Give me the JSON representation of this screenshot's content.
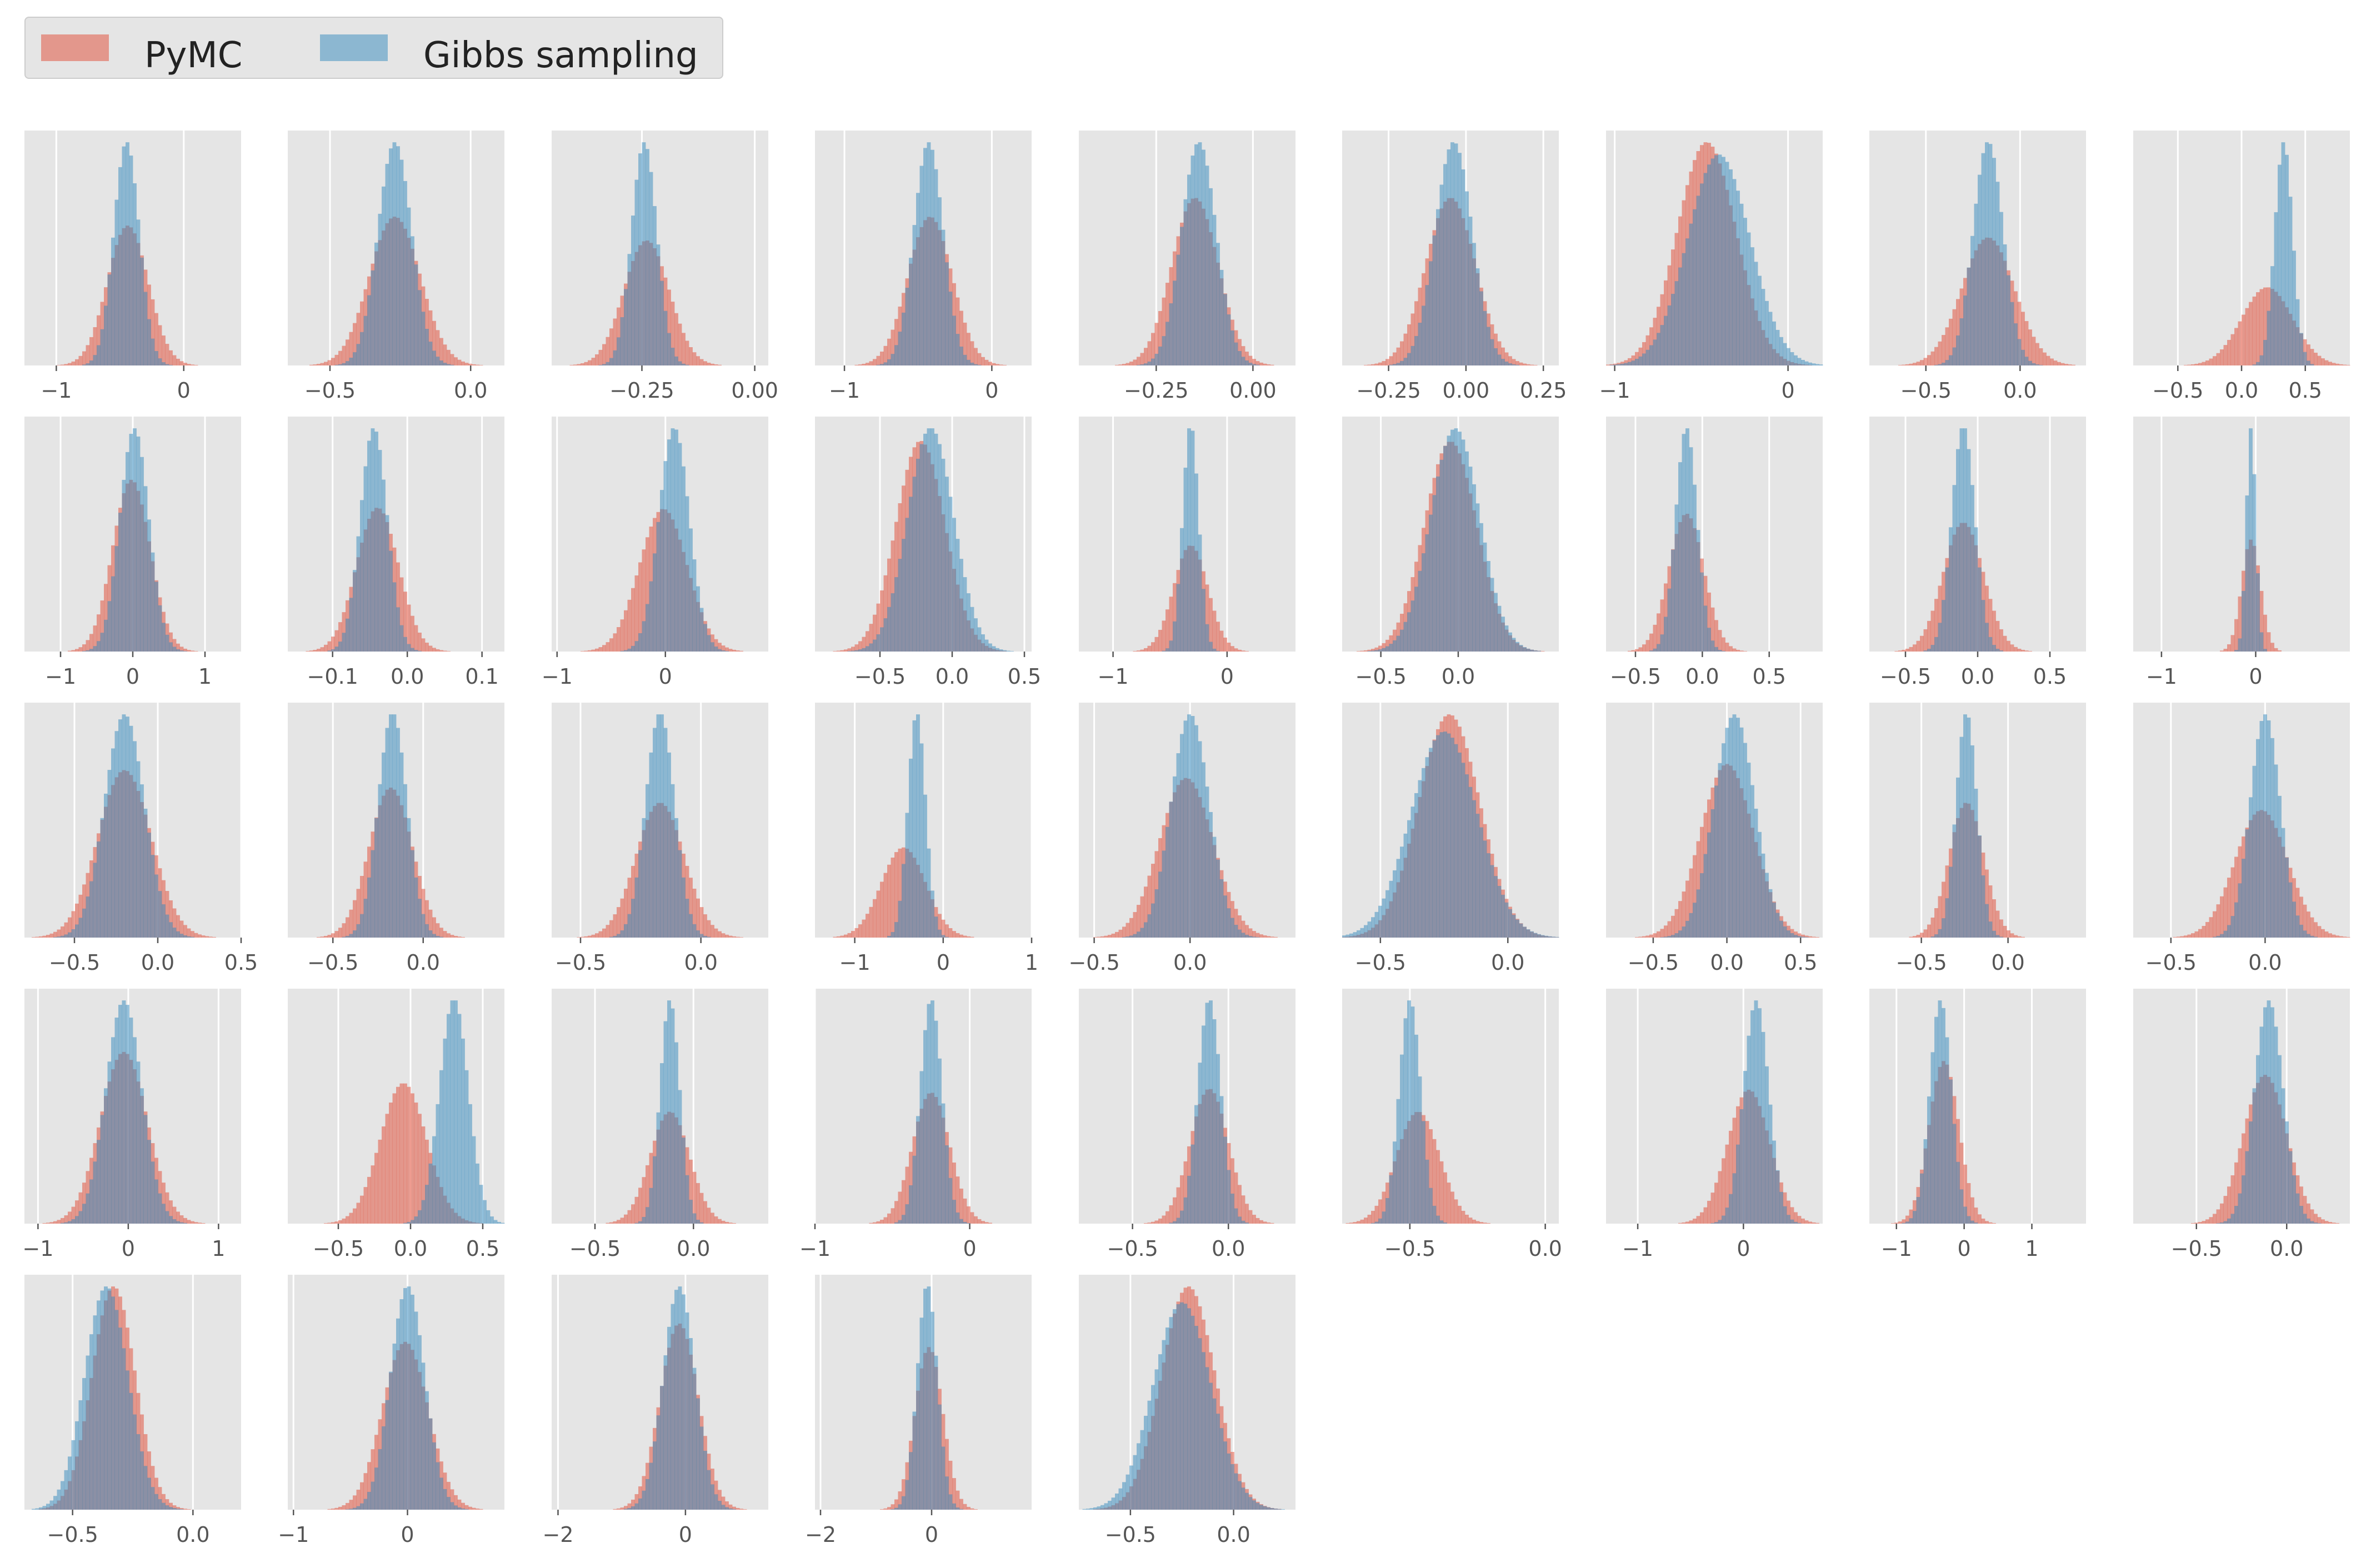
{
  "colors": {
    "panel_bg": "#e5e5e5",
    "grid": "#ffffff",
    "tick_text": "#555555",
    "pymc": "#e24a33",
    "gibbs": "#348abd",
    "hist_alpha": 0.5
  },
  "legend": {
    "items": [
      {
        "label": "PyMC",
        "color": "#e24a33"
      },
      {
        "label": "Gibbs sampling",
        "color": "#348abd"
      }
    ]
  },
  "chart_data": [
    {
      "type": "histogram",
      "xlim": [
        -1.25,
        0.45
      ],
      "ticks": [
        -1,
        0
      ],
      "tick_labels": [
        "−1",
        "0"
      ],
      "series": [
        {
          "name": "PyMC",
          "mean": -0.44,
          "sd": 0.16
        },
        {
          "name": "Gibbs sampling",
          "mean": -0.45,
          "sd": 0.1
        }
      ]
    },
    {
      "type": "histogram",
      "xlim": [
        -0.65,
        0.12
      ],
      "ticks": [
        -0.5,
        0.0
      ],
      "tick_labels": [
        "−0.5",
        "0.0"
      ],
      "series": [
        {
          "name": "PyMC",
          "mean": -0.27,
          "sd": 0.09
        },
        {
          "name": "Gibbs sampling",
          "mean": -0.27,
          "sd": 0.06
        }
      ]
    },
    {
      "type": "histogram",
      "xlim": [
        -0.45,
        0.03
      ],
      "ticks": [
        -0.25,
        0.0
      ],
      "tick_labels": [
        "−0.25",
        "0.00"
      ],
      "series": [
        {
          "name": "PyMC",
          "mean": -0.24,
          "sd": 0.05
        },
        {
          "name": "Gibbs sampling",
          "mean": -0.245,
          "sd": 0.028
        }
      ]
    },
    {
      "type": "histogram",
      "xlim": [
        -1.2,
        0.27
      ],
      "ticks": [
        -1,
        0
      ],
      "tick_labels": [
        "−1",
        "0"
      ],
      "series": [
        {
          "name": "PyMC",
          "mean": -0.42,
          "sd": 0.15
        },
        {
          "name": "Gibbs sampling",
          "mean": -0.43,
          "sd": 0.1
        }
      ]
    },
    {
      "type": "histogram",
      "xlim": [
        -0.45,
        0.11
      ],
      "ticks": [
        -0.25,
        0.0
      ],
      "tick_labels": [
        "−0.25",
        "0.00"
      ],
      "series": [
        {
          "name": "PyMC",
          "mean": -0.15,
          "sd": 0.06
        },
        {
          "name": "Gibbs sampling",
          "mean": -0.14,
          "sd": 0.045
        }
      ]
    },
    {
      "type": "histogram",
      "xlim": [
        -0.4,
        0.3
      ],
      "ticks": [
        -0.25,
        0.0,
        0.25
      ],
      "tick_labels": [
        "−0.25",
        "0.00",
        "0.25"
      ],
      "series": [
        {
          "name": "PyMC",
          "mean": -0.05,
          "sd": 0.08
        },
        {
          "name": "Gibbs sampling",
          "mean": -0.04,
          "sd": 0.06
        }
      ]
    },
    {
      "type": "histogram",
      "xlim": [
        -1.05,
        0.2
      ],
      "ticks": [
        -1,
        0
      ],
      "tick_labels": [
        "−1",
        "0"
      ],
      "series": [
        {
          "name": "PyMC",
          "mean": -0.47,
          "sd": 0.17
        },
        {
          "name": "Gibbs sampling",
          "mean": -0.4,
          "sd": 0.18
        }
      ]
    },
    {
      "type": "histogram",
      "xlim": [
        -0.8,
        0.35
      ],
      "ticks": [
        -0.5,
        0.0
      ],
      "tick_labels": [
        "−0.5",
        "0.0"
      ],
      "series": [
        {
          "name": "PyMC",
          "mean": -0.17,
          "sd": 0.14
        },
        {
          "name": "Gibbs sampling",
          "mean": -0.17,
          "sd": 0.08
        }
      ]
    },
    {
      "type": "histogram",
      "xlim": [
        -0.85,
        0.85
      ],
      "ticks": [
        -0.5,
        0.0,
        0.5
      ],
      "tick_labels": [
        "−0.5",
        "0.0",
        "0.5"
      ],
      "series": [
        {
          "name": "PyMC",
          "mean": 0.2,
          "sd": 0.2
        },
        {
          "name": "Gibbs sampling",
          "mean": 0.33,
          "sd": 0.07
        }
      ]
    },
    {
      "type": "histogram",
      "xlim": [
        -1.5,
        1.5
      ],
      "ticks": [
        -1,
        0,
        1
      ],
      "tick_labels": [
        "−1",
        "0",
        "1"
      ],
      "series": [
        {
          "name": "PyMC",
          "mean": -0.02,
          "sd": 0.26
        },
        {
          "name": "Gibbs sampling",
          "mean": 0.02,
          "sd": 0.2
        }
      ]
    },
    {
      "type": "histogram",
      "xlim": [
        -0.16,
        0.13
      ],
      "ticks": [
        -0.1,
        0.0,
        0.1
      ],
      "tick_labels": [
        "−0.1",
        "0.0",
        "0.1"
      ],
      "series": [
        {
          "name": "PyMC",
          "mean": -0.04,
          "sd": 0.028
        },
        {
          "name": "Gibbs sampling",
          "mean": -0.045,
          "sd": 0.018
        }
      ]
    },
    {
      "type": "histogram",
      "xlim": [
        -1.05,
        0.95
      ],
      "ticks": [
        -1,
        0
      ],
      "tick_labels": [
        "−1",
        "0"
      ],
      "series": [
        {
          "name": "PyMC",
          "mean": -0.02,
          "sd": 0.22
        },
        {
          "name": "Gibbs sampling",
          "mean": 0.08,
          "sd": 0.14
        }
      ]
    },
    {
      "type": "histogram",
      "xlim": [
        -0.95,
        0.55
      ],
      "ticks": [
        -0.5,
        0.0,
        0.5
      ],
      "tick_labels": [
        "−0.5",
        "0.0",
        "0.5"
      ],
      "series": [
        {
          "name": "PyMC",
          "mean": -0.22,
          "sd": 0.17
        },
        {
          "name": "Gibbs sampling",
          "mean": -0.15,
          "sd": 0.16
        }
      ]
    },
    {
      "type": "histogram",
      "xlim": [
        -1.3,
        0.6
      ],
      "ticks": [
        -1,
        0
      ],
      "tick_labels": [
        "−1",
        "0"
      ],
      "series": [
        {
          "name": "PyMC",
          "mean": -0.32,
          "sd": 0.15
        },
        {
          "name": "Gibbs sampling",
          "mean": -0.32,
          "sd": 0.07
        }
      ]
    },
    {
      "type": "histogram",
      "xlim": [
        -0.75,
        0.65
      ],
      "ticks": [
        -0.5,
        0.0
      ],
      "tick_labels": [
        "−0.5",
        "0.0"
      ],
      "series": [
        {
          "name": "PyMC",
          "mean": -0.05,
          "sd": 0.17
        },
        {
          "name": "Gibbs sampling",
          "mean": -0.02,
          "sd": 0.16
        }
      ]
    },
    {
      "type": "histogram",
      "xlim": [
        -0.72,
        0.9
      ],
      "ticks": [
        -0.5,
        0.0,
        0.5
      ],
      "tick_labels": [
        "−0.5",
        "0.0",
        "0.5"
      ],
      "series": [
        {
          "name": "PyMC",
          "mean": -0.12,
          "sd": 0.13
        },
        {
          "name": "Gibbs sampling",
          "mean": -0.12,
          "sd": 0.08
        }
      ]
    },
    {
      "type": "histogram",
      "xlim": [
        -0.75,
        0.75
      ],
      "ticks": [
        -0.5,
        0.0,
        0.5
      ],
      "tick_labels": [
        "−0.5",
        "0.0",
        "0.5"
      ],
      "series": [
        {
          "name": "PyMC",
          "mean": -0.1,
          "sd": 0.14
        },
        {
          "name": "Gibbs sampling",
          "mean": -0.1,
          "sd": 0.08
        }
      ]
    },
    {
      "type": "histogram",
      "xlim": [
        -1.3,
        1.0
      ],
      "ticks": [
        -1,
        0
      ],
      "tick_labels": [
        "−1",
        "0"
      ],
      "series": [
        {
          "name": "PyMC",
          "mean": -0.05,
          "sd": 0.1
        },
        {
          "name": "Gibbs sampling",
          "mean": -0.05,
          "sd": 0.05
        }
      ]
    },
    {
      "type": "histogram",
      "xlim": [
        -0.8,
        0.5
      ],
      "ticks": [
        -0.5,
        0.0,
        0.5
      ],
      "tick_labels": [
        "−0.5",
        "0.0",
        "0.5"
      ],
      "series": [
        {
          "name": "PyMC",
          "mean": -0.2,
          "sd": 0.16
        },
        {
          "name": "Gibbs sampling",
          "mean": -0.2,
          "sd": 0.12
        }
      ]
    },
    {
      "type": "histogram",
      "xlim": [
        -0.75,
        0.45
      ],
      "ticks": [
        -0.5,
        0.0
      ],
      "tick_labels": [
        "−0.5",
        "0.0"
      ],
      "series": [
        {
          "name": "PyMC",
          "mean": -0.18,
          "sd": 0.12
        },
        {
          "name": "Gibbs sampling",
          "mean": -0.17,
          "sd": 0.08
        }
      ]
    },
    {
      "type": "histogram",
      "xlim": [
        -0.62,
        0.28
      ],
      "ticks": [
        -0.5,
        0.0
      ],
      "tick_labels": [
        "−0.5",
        "0.0"
      ],
      "series": [
        {
          "name": "PyMC",
          "mean": -0.17,
          "sd": 0.1
        },
        {
          "name": "Gibbs sampling",
          "mean": -0.17,
          "sd": 0.06
        }
      ]
    },
    {
      "type": "histogram",
      "xlim": [
        -1.45,
        1.0
      ],
      "ticks": [
        -1,
        0,
        1
      ],
      "tick_labels": [
        "−1",
        "0",
        "1"
      ],
      "series": [
        {
          "name": "PyMC",
          "mean": -0.45,
          "sd": 0.25
        },
        {
          "name": "Gibbs sampling",
          "mean": -0.3,
          "sd": 0.1
        }
      ]
    },
    {
      "type": "histogram",
      "xlim": [
        -0.58,
        0.55
      ],
      "ticks": [
        -0.5,
        0.0
      ],
      "tick_labels": [
        "−0.5",
        "0.0"
      ],
      "series": [
        {
          "name": "PyMC",
          "mean": -0.02,
          "sd": 0.14
        },
        {
          "name": "Gibbs sampling",
          "mean": 0.0,
          "sd": 0.1
        }
      ]
    },
    {
      "type": "histogram",
      "xlim": [
        -0.65,
        0.2
      ],
      "ticks": [
        -0.5,
        0.0
      ],
      "tick_labels": [
        "−0.5",
        "0.0"
      ],
      "series": [
        {
          "name": "PyMC",
          "mean": -0.23,
          "sd": 0.12
        },
        {
          "name": "Gibbs sampling",
          "mean": -0.25,
          "sd": 0.13
        }
      ]
    },
    {
      "type": "histogram",
      "xlim": [
        -0.82,
        0.65
      ],
      "ticks": [
        -0.5,
        0.0,
        0.5
      ],
      "tick_labels": [
        "−0.5",
        "0.0",
        "0.5"
      ],
      "series": [
        {
          "name": "PyMC",
          "mean": 0.0,
          "sd": 0.18
        },
        {
          "name": "Gibbs sampling",
          "mean": 0.05,
          "sd": 0.14
        }
      ]
    },
    {
      "type": "histogram",
      "xlim": [
        -0.8,
        0.45
      ],
      "ticks": [
        -0.5,
        0.0
      ],
      "tick_labels": [
        "−0.5",
        "0.0"
      ],
      "series": [
        {
          "name": "PyMC",
          "mean": -0.24,
          "sd": 0.1
        },
        {
          "name": "Gibbs sampling",
          "mean": -0.24,
          "sd": 0.06
        }
      ]
    },
    {
      "type": "histogram",
      "xlim": [
        -0.7,
        0.45
      ],
      "ticks": [
        -0.5,
        0.0
      ],
      "tick_labels": [
        "−0.5",
        "0.0"
      ],
      "series": [
        {
          "name": "PyMC",
          "mean": -0.02,
          "sd": 0.14
        },
        {
          "name": "Gibbs sampling",
          "mean": 0.0,
          "sd": 0.08
        }
      ]
    },
    {
      "type": "histogram",
      "xlim": [
        -1.15,
        1.25
      ],
      "ticks": [
        -1,
        0,
        1
      ],
      "tick_labels": [
        "−1",
        "0",
        "1"
      ],
      "series": [
        {
          "name": "PyMC",
          "mean": -0.05,
          "sd": 0.26
        },
        {
          "name": "Gibbs sampling",
          "mean": -0.05,
          "sd": 0.2
        }
      ]
    },
    {
      "type": "histogram",
      "xlim": [
        -0.85,
        0.65
      ],
      "ticks": [
        -0.5,
        0.0,
        0.5
      ],
      "tick_labels": [
        "−0.5",
        "0.0",
        "0.5"
      ],
      "series": [
        {
          "name": "PyMC",
          "mean": -0.05,
          "sd": 0.16
        },
        {
          "name": "Gibbs sampling",
          "mean": 0.3,
          "sd": 0.1
        }
      ]
    },
    {
      "type": "histogram",
      "xlim": [
        -0.72,
        0.38
      ],
      "ticks": [
        -0.5,
        0.0
      ],
      "tick_labels": [
        "−0.5",
        "0.0"
      ],
      "series": [
        {
          "name": "PyMC",
          "mean": -0.12,
          "sd": 0.1
        },
        {
          "name": "Gibbs sampling",
          "mean": -0.12,
          "sd": 0.05
        }
      ]
    },
    {
      "type": "histogram",
      "xlim": [
        -1.0,
        0.4
      ],
      "ticks": [
        -1,
        0
      ],
      "tick_labels": [
        "−1",
        "0"
      ],
      "series": [
        {
          "name": "PyMC",
          "mean": -0.25,
          "sd": 0.12
        },
        {
          "name": "Gibbs sampling",
          "mean": -0.25,
          "sd": 0.07
        }
      ]
    },
    {
      "type": "histogram",
      "xlim": [
        -0.78,
        0.35
      ],
      "ticks": [
        -0.5,
        0.0
      ],
      "tick_labels": [
        "−0.5",
        "0.0"
      ],
      "series": [
        {
          "name": "PyMC",
          "mean": -0.1,
          "sd": 0.1
        },
        {
          "name": "Gibbs sampling",
          "mean": -0.1,
          "sd": 0.06
        }
      ]
    },
    {
      "type": "histogram",
      "xlim": [
        -0.75,
        0.05
      ],
      "ticks": [
        -0.5,
        0.0
      ],
      "tick_labels": [
        "−0.5",
        "0.0"
      ],
      "series": [
        {
          "name": "PyMC",
          "mean": -0.47,
          "sd": 0.08
        },
        {
          "name": "Gibbs sampling",
          "mean": -0.5,
          "sd": 0.04
        }
      ]
    },
    {
      "type": "histogram",
      "xlim": [
        -1.3,
        0.75
      ],
      "ticks": [
        -1,
        0
      ],
      "tick_labels": [
        "−1",
        "0"
      ],
      "series": [
        {
          "name": "PyMC",
          "mean": 0.05,
          "sd": 0.2
        },
        {
          "name": "Gibbs sampling",
          "mean": 0.12,
          "sd": 0.12
        }
      ]
    },
    {
      "type": "histogram",
      "xlim": [
        -1.4,
        1.8
      ],
      "ticks": [
        -1,
        0,
        1
      ],
      "tick_labels": [
        "−1",
        "0",
        "1"
      ],
      "series": [
        {
          "name": "PyMC",
          "mean": -0.3,
          "sd": 0.22
        },
        {
          "name": "Gibbs sampling",
          "mean": -0.35,
          "sd": 0.16
        }
      ]
    },
    {
      "type": "histogram",
      "xlim": [
        -0.85,
        0.35
      ],
      "ticks": [
        -0.5,
        0.0
      ],
      "tick_labels": [
        "−0.5",
        "0.0"
      ],
      "series": [
        {
          "name": "PyMC",
          "mean": -0.12,
          "sd": 0.12
        },
        {
          "name": "Gibbs sampling",
          "mean": -0.1,
          "sd": 0.08
        }
      ]
    },
    {
      "type": "histogram",
      "xlim": [
        -0.7,
        0.2
      ],
      "ticks": [
        -0.5,
        0.0
      ],
      "tick_labels": [
        "−0.5",
        "0.0"
      ],
      "series": [
        {
          "name": "PyMC",
          "mean": -0.33,
          "sd": 0.09
        },
        {
          "name": "Gibbs sampling",
          "mean": -0.36,
          "sd": 0.09
        }
      ]
    },
    {
      "type": "histogram",
      "xlim": [
        -1.05,
        0.85
      ],
      "ticks": [
        -1,
        0
      ],
      "tick_labels": [
        "−1",
        "0"
      ],
      "series": [
        {
          "name": "PyMC",
          "mean": -0.02,
          "sd": 0.2
        },
        {
          "name": "Gibbs sampling",
          "mean": 0.0,
          "sd": 0.15
        }
      ]
    },
    {
      "type": "histogram",
      "xlim": [
        -2.1,
        1.3
      ],
      "ticks": [
        -2,
        0
      ],
      "tick_labels": [
        "−2",
        "0"
      ],
      "series": [
        {
          "name": "PyMC",
          "mean": -0.1,
          "sd": 0.3
        },
        {
          "name": "Gibbs sampling",
          "mean": -0.1,
          "sd": 0.25
        }
      ]
    },
    {
      "type": "histogram",
      "xlim": [
        -2.1,
        1.8
      ],
      "ticks": [
        -2,
        0
      ],
      "tick_labels": [
        "−2",
        "0"
      ],
      "series": [
        {
          "name": "PyMC",
          "mean": -0.05,
          "sd": 0.25
        },
        {
          "name": "Gibbs sampling",
          "mean": -0.08,
          "sd": 0.18
        }
      ]
    },
    {
      "type": "histogram",
      "xlim": [
        -0.75,
        0.3
      ],
      "ticks": [
        -0.5,
        0.0
      ],
      "tick_labels": [
        "−0.5",
        "0.0"
      ],
      "series": [
        {
          "name": "PyMC",
          "mean": -0.22,
          "sd": 0.13
        },
        {
          "name": "Gibbs sampling",
          "mean": -0.25,
          "sd": 0.14
        }
      ]
    }
  ]
}
